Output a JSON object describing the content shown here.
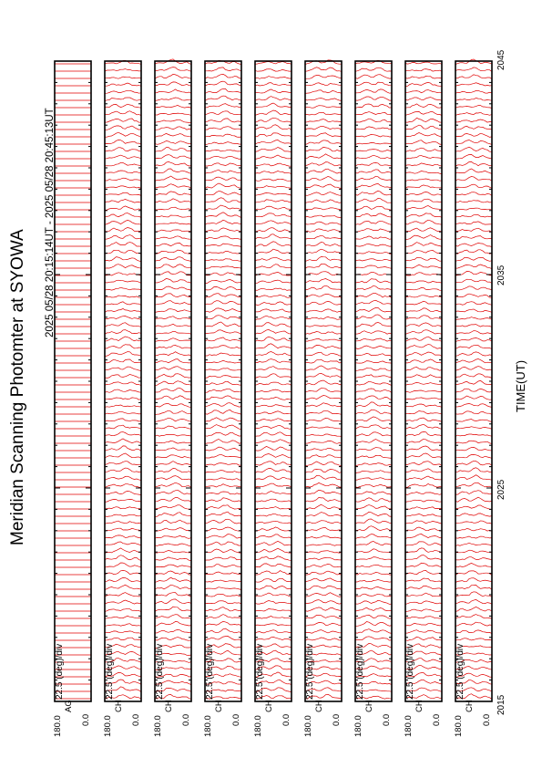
{
  "page_title": "Meridian Scanning Photomter at SYOWA",
  "page_subtitle": "2025 05/28 20:15:14UT - 2025 05/28 20:45:13UT",
  "chart_data": {
    "type": "line",
    "title": "Meridian Scanning Photomter at SYOWA",
    "subtitle": "2025 05/28 20:15:14UT - 2025 05/28 20:45:13UT",
    "xlabel": "TIME(UT)",
    "x_ticks": [
      "2015",
      "2025",
      "2035",
      "2045"
    ],
    "xlim": [
      "2015",
      "2045"
    ],
    "line_color": "#e00000",
    "panels": [
      {
        "channel": "AG",
        "scale": "22.5 (deg)/div",
        "ylim": [
          "0.0",
          "180.0"
        ]
      },
      {
        "channel": "CH",
        "scale": "22.5 (deg)/div",
        "ylim": [
          "0.0",
          "180.0"
        ]
      },
      {
        "channel": "CH",
        "scale": "22.5 (deg)/div",
        "ylim": [
          "0.0",
          "180.0"
        ]
      },
      {
        "channel": "CH",
        "scale": "22.5 (deg)/div",
        "ylim": [
          "0.0",
          "180.0"
        ]
      },
      {
        "channel": "CH",
        "scale": "22.5 (deg)/div",
        "ylim": [
          "0.0",
          "180.0"
        ]
      },
      {
        "channel": "CH",
        "scale": "22.5 (deg)/div",
        "ylim": [
          "0.0",
          "180.0"
        ]
      },
      {
        "channel": "CH",
        "scale": "22.5 (deg)/div",
        "ylim": [
          "0.0",
          "180.0"
        ]
      },
      {
        "channel": "CH",
        "scale": "22.5 (deg)/div",
        "ylim": [
          "0.0",
          "180.0"
        ]
      },
      {
        "channel": "CH",
        "scale": "22.5 (deg)/div",
        "ylim": [
          "0.0",
          "180.0"
        ]
      }
    ]
  }
}
